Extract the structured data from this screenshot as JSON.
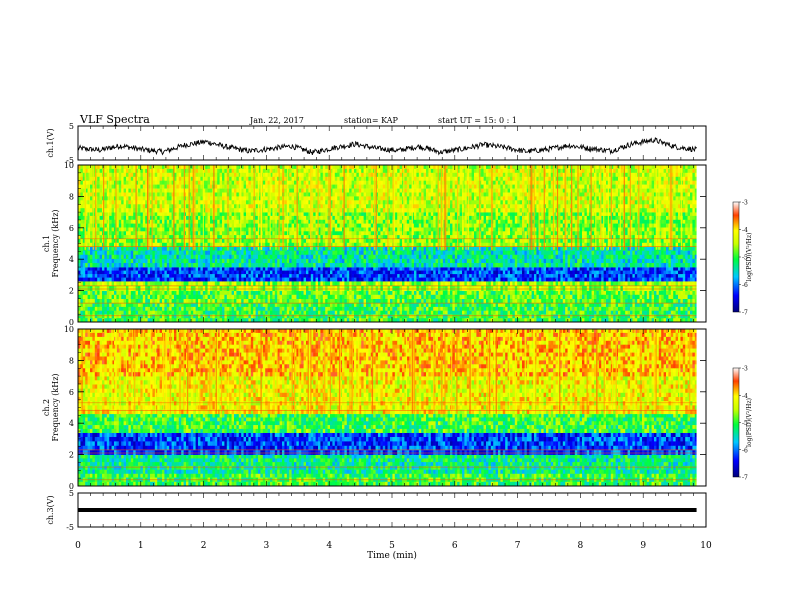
{
  "header": {
    "title": "VLF Spectra",
    "date": "Jan. 22, 2017",
    "station": "station= KAP",
    "start": "start UT =  15: 0  : 1"
  },
  "chart_data": [
    {
      "id": "ch1-waveform",
      "type": "line",
      "ylabel": "ch.1(V)",
      "yticks": [
        "5",
        "-5"
      ],
      "ylim": [
        -5,
        5
      ],
      "xlim": [
        0,
        10
      ],
      "note": "noisy waveform trace, mean ~ -1.5 V, range ~ -4 to 2 V",
      "series": [
        {
          "color": "#000000",
          "values": [
            -1.5,
            -2.1,
            -0.8,
            -1.9,
            -2.6,
            -0.6,
            0.4,
            -1.2,
            -2.4,
            -1.7,
            -0.9,
            -2.8,
            -1.4,
            -0.3,
            -1.6,
            -2.2,
            -1.0,
            -2.7,
            -1.8,
            -0.5,
            -1.3,
            -2.5,
            -1.9,
            -0.7,
            -1.6,
            -2.3,
            -0.2,
            0.9,
            -1.1,
            -2.0
          ]
        }
      ]
    },
    {
      "id": "ch1-spectrogram",
      "type": "heatmap",
      "ylabel": "ch.1\nFrequency  (kHz)",
      "ylabel_line1": "ch.1",
      "ylabel_line2": "Frequency  (kHz)",
      "yticks": [
        "10",
        "8",
        "6",
        "4",
        "2",
        "0"
      ],
      "ylim": [
        0,
        10
      ],
      "xlim": [
        0,
        10
      ],
      "colorbar": {
        "label": "log(PSD)(V²/Hz)",
        "ticks": [
          "-3",
          "-4",
          "-5",
          "-6",
          "-7"
        ],
        "range": [
          -7,
          -3
        ]
      },
      "bands": [
        {
          "from_khz": 0,
          "to_khz": 1.2,
          "level": -5.0
        },
        {
          "from_khz": 1.2,
          "to_khz": 2.0,
          "level": -4.9
        },
        {
          "from_khz": 2.0,
          "to_khz": 2.6,
          "level": -4.6
        },
        {
          "from_khz": 2.6,
          "to_khz": 3.5,
          "level": -6.2
        },
        {
          "from_khz": 3.5,
          "to_khz": 4.8,
          "level": -5.4
        },
        {
          "from_khz": 4.8,
          "to_khz": 7.0,
          "level": -4.7
        },
        {
          "from_khz": 7.0,
          "to_khz": 10.0,
          "level": -4.4
        }
      ]
    },
    {
      "id": "ch2-spectrogram",
      "type": "heatmap",
      "ylabel": "ch.2\nFrequency  (kHz)",
      "ylabel_line1": "ch.2",
      "ylabel_line2": "Frequency  (kHz)",
      "yticks": [
        "10",
        "8",
        "6",
        "4",
        "2",
        "0"
      ],
      "ylim": [
        0,
        10
      ],
      "xlim": [
        0,
        10
      ],
      "colorbar": {
        "label": "log(PSD)(V²/Hz)",
        "ticks": [
          "-3",
          "-4",
          "-5",
          "-6",
          "-7"
        ],
        "range": [
          -7,
          -3
        ]
      },
      "bands": [
        {
          "from_khz": 0,
          "to_khz": 0.8,
          "level": -5.0
        },
        {
          "from_khz": 0.8,
          "to_khz": 2.0,
          "level": -5.3
        },
        {
          "from_khz": 2.0,
          "to_khz": 3.4,
          "level": -6.2
        },
        {
          "from_khz": 3.4,
          "to_khz": 4.6,
          "level": -5.0
        },
        {
          "from_khz": 4.6,
          "to_khz": 7.0,
          "level": -4.2
        },
        {
          "from_khz": 7.0,
          "to_khz": 10.0,
          "level": -3.9
        }
      ]
    },
    {
      "id": "ch3-waveform",
      "type": "line",
      "ylabel": "ch.3(V)",
      "yticks": [
        "5",
        "-5"
      ],
      "ylim": [
        -5,
        5
      ],
      "xlim": [
        0,
        10
      ],
      "series": [
        {
          "color": "#000000",
          "values": [
            0,
            0
          ]
        }
      ]
    }
  ],
  "xaxis": {
    "label": "Time  (min)",
    "ticks": [
      "0",
      "1",
      "2",
      "3",
      "4",
      "5",
      "6",
      "7",
      "8",
      "9",
      "10"
    ]
  }
}
